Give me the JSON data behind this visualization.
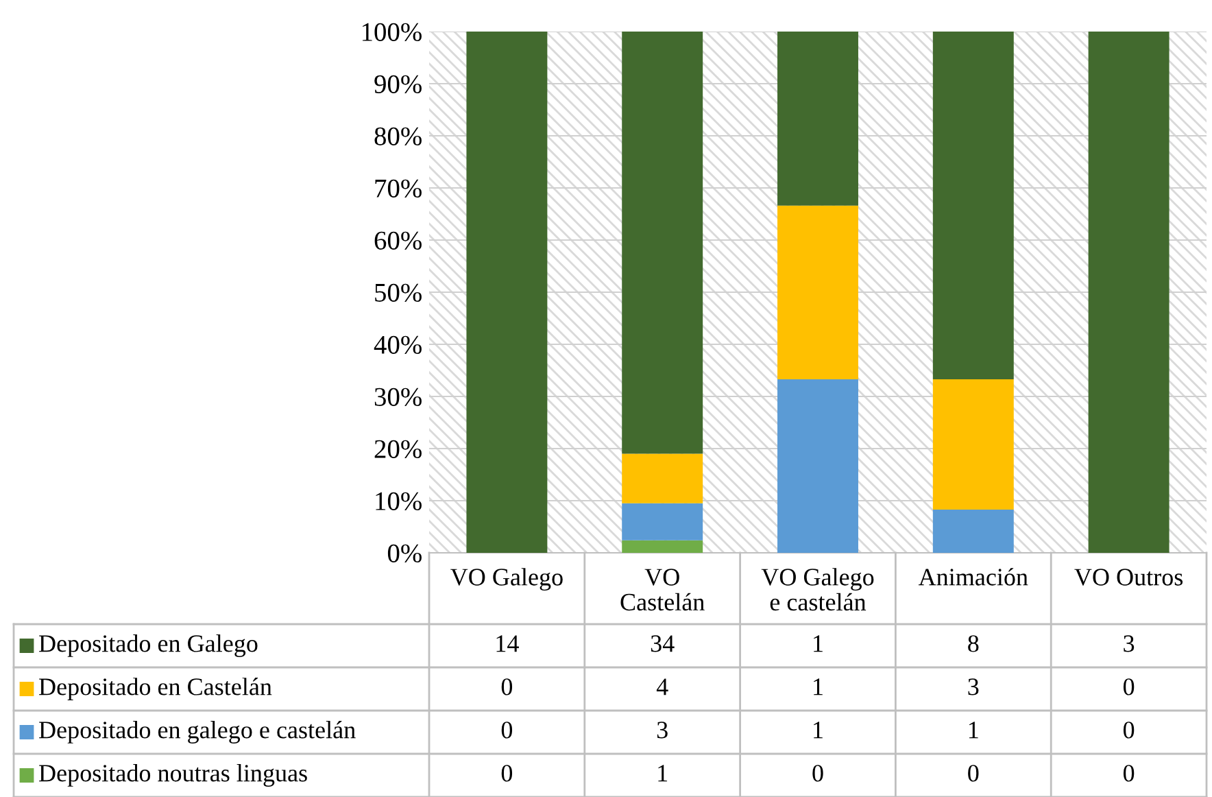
{
  "chart_data": {
    "type": "bar",
    "stacked": true,
    "categories": [
      "VO Galego",
      "VO\nCastelán",
      "VO Galego\ne castelán",
      "Animación",
      "VO Outros"
    ],
    "series": [
      {
        "name": "Depositado noutras linguas",
        "color": "#70ad47",
        "values": [
          0,
          2.4,
          0,
          0,
          0
        ]
      },
      {
        "name": "Depositado en galego e castelán",
        "color": "#5b9bd5",
        "values": [
          0,
          7.1,
          33.3,
          8.3,
          0
        ]
      },
      {
        "name": "Depositado en Castelán",
        "color": "#ffc000",
        "values": [
          0,
          9.5,
          33.3,
          25,
          0
        ]
      },
      {
        "name": "Depositado en Galego",
        "color": "#426a2e",
        "values": [
          100,
          81,
          33.4,
          66.7,
          100
        ]
      }
    ],
    "annotations": [
      "14",
      "34",
      "1",
      "8",
      "3",
      "0",
      "4",
      "1",
      "3",
      "0",
      "0",
      "3",
      "1",
      "1",
      "0",
      "0",
      "1",
      "0",
      "0",
      "0"
    ],
    "ylim": [
      0,
      100
    ],
    "yticks": [
      {
        "value": 0,
        "label": "0%"
      },
      {
        "value": 10,
        "label": "10%"
      },
      {
        "value": 20,
        "label": "20%"
      },
      {
        "value": 30,
        "label": "30%"
      },
      {
        "value": 40,
        "label": "40%"
      },
      {
        "value": 50,
        "label": "50%"
      },
      {
        "value": 60,
        "label": "60%"
      },
      {
        "value": 70,
        "label": "70%"
      },
      {
        "value": 80,
        "label": "80%"
      },
      {
        "value": 90,
        "label": "90%"
      },
      {
        "value": 100,
        "label": "100%"
      }
    ],
    "grid": "y",
    "legend": "bottom"
  }
}
